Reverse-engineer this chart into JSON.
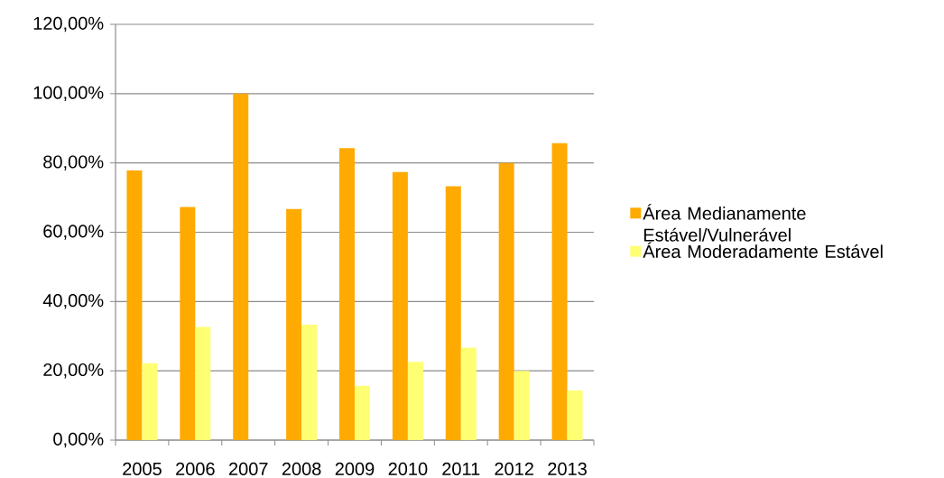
{
  "chart_data": {
    "type": "bar",
    "categories": [
      "2005",
      "2006",
      "2007",
      "2008",
      "2009",
      "2010",
      "2011",
      "2012",
      "2013"
    ],
    "series": [
      {
        "name": "Área Medianamente Estável/Vulnerável",
        "color": "#ffaa00",
        "values": [
          77.8,
          67.3,
          100,
          66.7,
          84.3,
          77.4,
          73.3,
          80,
          85.7
        ]
      },
      {
        "name": "Área Moderadamente Estável",
        "color": "#ffff73",
        "values": [
          22.2,
          32.7,
          0,
          33.3,
          15.7,
          22.6,
          26.7,
          20,
          14.3
        ]
      }
    ],
    "ylim": [
      0,
      120
    ],
    "yticks": [
      {
        "value": 0,
        "label": "0,00%"
      },
      {
        "value": 20,
        "label": "20,00%"
      },
      {
        "value": 40,
        "label": "40,00%"
      },
      {
        "value": 60,
        "label": "60,00%"
      },
      {
        "value": 80,
        "label": "80,00%"
      },
      {
        "value": 100,
        "label": "100,00%"
      },
      {
        "value": 120,
        "label": "120,00%"
      }
    ],
    "grid": "y",
    "legend": "right"
  }
}
